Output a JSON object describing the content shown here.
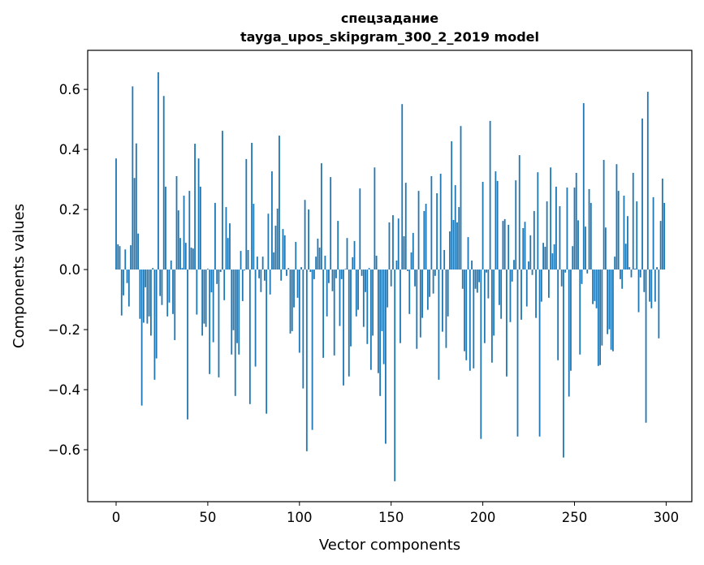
{
  "chart_data": {
    "type": "bar",
    "title": "спецзадание",
    "subtitle": "tayga_upos_skipgram_300_2_2019 model",
    "xlabel": "Vector components",
    "ylabel": "Components values",
    "xlim": [
      -15.5,
      314
    ],
    "ylim": [
      -0.773,
      0.73
    ],
    "xticks": [
      0,
      50,
      100,
      150,
      200,
      250,
      300
    ],
    "xtick_labels": [
      "0",
      "50",
      "100",
      "150",
      "200",
      "250",
      "300"
    ],
    "yticks": [
      -0.6,
      -0.4,
      -0.2,
      0.0,
      0.2,
      0.4,
      0.6
    ],
    "ytick_labels": [
      "−0.6",
      "−0.4",
      "−0.2",
      "0.0",
      "0.2",
      "0.4",
      "0.6"
    ],
    "grid": false,
    "color": "#1f77b4",
    "values": [
      0.37,
      0.084,
      0.078,
      -0.153,
      -0.086,
      0.067,
      -0.045,
      -0.123,
      0.081,
      0.61,
      0.305,
      0.42,
      0.12,
      -0.164,
      -0.453,
      -0.177,
      -0.059,
      -0.18,
      -0.156,
      -0.22,
      0.005,
      -0.367,
      -0.296,
      0.657,
      -0.088,
      -0.118,
      0.578,
      0.276,
      -0.156,
      -0.11,
      0.03,
      -0.148,
      -0.235,
      0.311,
      0.197,
      0.105,
      0.005,
      0.246,
      0.089,
      -0.499,
      0.262,
      0.073,
      0.07,
      0.419,
      -0.15,
      0.37,
      0.276,
      -0.22,
      -0.18,
      -0.191,
      0.003,
      -0.348,
      -0.076,
      -0.242,
      0.222,
      -0.048,
      -0.359,
      -0.008,
      0.462,
      -0.102,
      0.208,
      0.105,
      0.154,
      -0.283,
      -0.202,
      -0.421,
      -0.245,
      -0.283,
      0.062,
      -0.105,
      -0.003,
      0.368,
      0.065,
      -0.448,
      0.422,
      0.219,
      -0.323,
      0.043,
      -0.029,
      -0.075,
      0.043,
      -0.037,
      -0.48,
      0.186,
      -0.083,
      0.327,
      0.057,
      0.146,
      0.203,
      0.446,
      -0.037,
      0.135,
      0.114,
      -0.021,
      0.005,
      -0.213,
      -0.205,
      -0.126,
      0.092,
      -0.094,
      -0.277,
      0.008,
      -0.396,
      0.232,
      -0.605,
      0.2,
      -0.008,
      -0.534,
      -0.032,
      0.043,
      0.103,
      0.073,
      0.354,
      -0.294,
      0.046,
      -0.156,
      -0.045,
      0.308,
      -0.072,
      -0.286,
      -0.029,
      0.162,
      -0.188,
      -0.032,
      -0.386,
      0.002,
      0.105,
      -0.356,
      -0.256,
      0.041,
      0.095,
      -0.156,
      -0.134,
      0.27,
      -0.021,
      -0.191,
      -0.075,
      -0.248,
      0.005,
      -0.334,
      -0.22,
      0.34,
      0.046,
      -0.345,
      -0.421,
      -0.205,
      -0.315,
      -0.58,
      -0.126,
      0.157,
      -0.056,
      0.181,
      -0.705,
      0.03,
      0.17,
      -0.245,
      0.551,
      0.111,
      0.289,
      -0.005,
      -0.148,
      0.057,
      0.122,
      -0.056,
      -0.264,
      0.262,
      -0.226,
      -0.161,
      0.195,
      0.219,
      -0.134,
      -0.091,
      0.311,
      -0.08,
      -0.021,
      0.254,
      -0.367,
      0.319,
      -0.207,
      0.065,
      -0.261,
      -0.156,
      0.127,
      0.427,
      0.165,
      0.281,
      0.157,
      0.208,
      0.478,
      -0.064,
      -0.272,
      -0.302,
      0.108,
      -0.337,
      0.03,
      -0.329,
      -0.064,
      -0.077,
      -0.042,
      -0.564,
      0.292,
      -0.245,
      -0.01,
      -0.096,
      0.495,
      -0.31,
      -0.22,
      0.327,
      0.295,
      -0.118,
      -0.164,
      0.162,
      0.168,
      -0.356,
      0.149,
      -0.175,
      -0.04,
      0.032,
      0.297,
      -0.556,
      0.381,
      -0.167,
      0.138,
      0.159,
      -0.123,
      0.027,
      0.114,
      -0.018,
      0.195,
      -0.161,
      0.324,
      -0.556,
      -0.107,
      0.089,
      0.076,
      0.227,
      -0.094,
      0.34,
      0.054,
      0.084,
      0.276,
      -0.302,
      0.211,
      -0.056,
      -0.626,
      -0.01,
      0.273,
      -0.423,
      -0.337,
      0.078,
      0.273,
      0.322,
      0.164,
      -0.283,
      -0.048,
      0.554,
      0.143,
      -0.013,
      0.268,
      0.222,
      -0.115,
      -0.105,
      -0.129,
      -0.321,
      -0.318,
      -0.253,
      0.365,
      0.14,
      -0.215,
      -0.199,
      -0.267,
      -0.272,
      0.043,
      0.351,
      0.262,
      -0.032,
      -0.064,
      0.246,
      0.086,
      0.178,
      0.008,
      -0.026,
      0.322,
      0.003,
      0.227,
      -0.142,
      -0.026,
      0.503,
      -0.075,
      -0.51,
      0.592,
      -0.107,
      -0.129,
      0.241,
      -0.107,
      0.008,
      -0.229,
      0.162,
      0.303,
      0.222
    ]
  }
}
